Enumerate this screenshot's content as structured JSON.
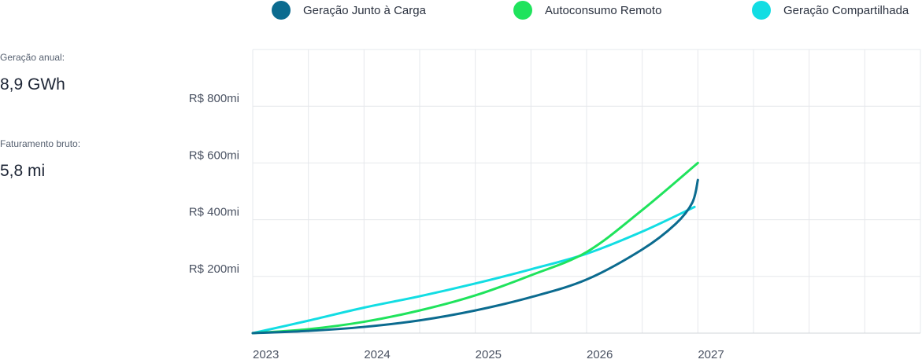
{
  "stats": [
    {
      "label": "Geração anual:",
      "value": "8,9 GWh"
    },
    {
      "label": "Faturamento bruto:",
      "value": "5,8 mi"
    }
  ],
  "chart_data": {
    "type": "line",
    "title": "",
    "xlabel": "",
    "ylabel": "",
    "x_ticks": [
      "2023",
      "2024",
      "2025",
      "2026",
      "2027"
    ],
    "y_ticks": [
      {
        "value": 200,
        "label": "R$ 200mi"
      },
      {
        "value": 400,
        "label": "R$ 400mi"
      },
      {
        "value": 600,
        "label": "R$ 600mi"
      },
      {
        "value": 800,
        "label": "R$ 800mi"
      }
    ],
    "xlim": [
      2023,
      2029
    ],
    "ylim": [
      0,
      1000
    ],
    "grid": true,
    "legend_position": "top",
    "series": [
      {
        "name": "Geração Junto à Carga",
        "color": "#0b6b8f",
        "x": [
          2023,
          2023.5,
          2024,
          2024.5,
          2025,
          2025.5,
          2026,
          2026.5,
          2026.8,
          2026.95,
          2027
        ],
        "y": [
          0,
          8,
          22,
          45,
          80,
          127,
          189,
          295,
          385,
          460,
          540
        ]
      },
      {
        "name": "Autoconsumo Remoto",
        "color": "#1fe35c",
        "x": [
          2023,
          2023.5,
          2024,
          2024.5,
          2025,
          2025.5,
          2026,
          2026.5,
          2027
        ],
        "y": [
          0,
          14,
          40,
          80,
          133,
          204,
          286,
          434,
          600
        ]
      },
      {
        "name": "Geração Compartilhada",
        "color": "#12dde3",
        "x": [
          2023,
          2023.5,
          2024,
          2024.5,
          2025,
          2025.5,
          2026,
          2026.5,
          2026.97
        ],
        "y": [
          0,
          44,
          90,
          130,
          175,
          225,
          280,
          358,
          445
        ]
      }
    ]
  }
}
